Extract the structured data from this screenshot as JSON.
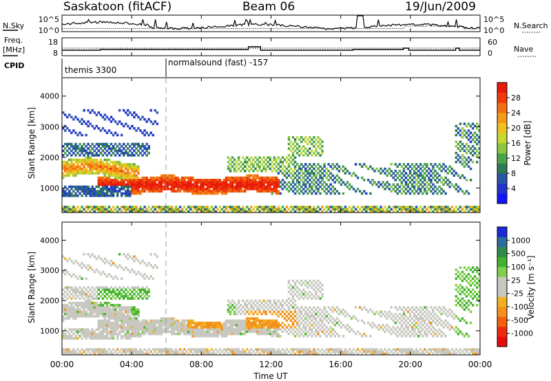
{
  "header": {
    "station": "Saskatoon (fitACF)",
    "beam": "Beam 06",
    "date": "19/Jun/2009"
  },
  "panels": {
    "nsky_label": "N.Sky",
    "nsky_ticks": [
      "10^5",
      "10^0"
    ],
    "nsearch_label": "N.Search",
    "nsearch_ticks": [
      "10^5",
      "10^0"
    ],
    "freq_label": "Freq.",
    "freq_unit": "[MHz]",
    "freq_ticks": [
      "18",
      "8"
    ],
    "nave_label": "Nave",
    "nave_ticks": [
      "60",
      "0"
    ],
    "cpid_label": "CPID",
    "cpid_segments": [
      "themis 3300",
      "normalsound (fast) -157"
    ]
  },
  "chart_data": [
    {
      "type": "heatmap",
      "name": "power",
      "xlabel": "",
      "ylabel": "Slant Range [km]",
      "yticks": [
        "1000",
        "2000",
        "3000",
        "4000"
      ],
      "ylim": [
        200,
        4600
      ],
      "xlim": [
        0,
        24
      ],
      "colorbar": {
        "label": "Power [dB]",
        "ticks": [
          "4",
          "8",
          "12",
          "16",
          "20",
          "24",
          "28"
        ],
        "range": [
          0,
          32
        ],
        "colors": [
          "#1414ff",
          "#2233cc",
          "#2a55a8",
          "#2f7a55",
          "#4aa34a",
          "#8cc63e",
          "#c8d832",
          "#f0c020",
          "#f39a1a",
          "#f26e12",
          "#ef3a0c",
          "#e81a0a"
        ]
      }
    },
    {
      "type": "heatmap",
      "name": "velocity",
      "xlabel": "Time UT",
      "ylabel": "Slant Range [km]",
      "yticks": [
        "1000",
        "2000",
        "3000",
        "4000"
      ],
      "xticks": [
        "00:00",
        "04:00",
        "08:00",
        "12:00",
        "16:00",
        "20:00",
        "00:00"
      ],
      "ylim": [
        200,
        4600
      ],
      "xlim": [
        0,
        24
      ],
      "colorbar": {
        "label": "Velocity [m s⁻¹]",
        "ticks": [
          "1000",
          "500",
          "100",
          "25",
          "-25",
          "-100",
          "-500",
          "-1000"
        ],
        "colors": [
          "#1c2bd6",
          "#2a6c9c",
          "#2f8a4a",
          "#44b030",
          "#7fd04a",
          "#c8c8c0",
          "#c8c8c0",
          "#f0b020",
          "#f39020",
          "#f26010",
          "#ef2a10",
          "#e80a0a"
        ]
      }
    }
  ]
}
